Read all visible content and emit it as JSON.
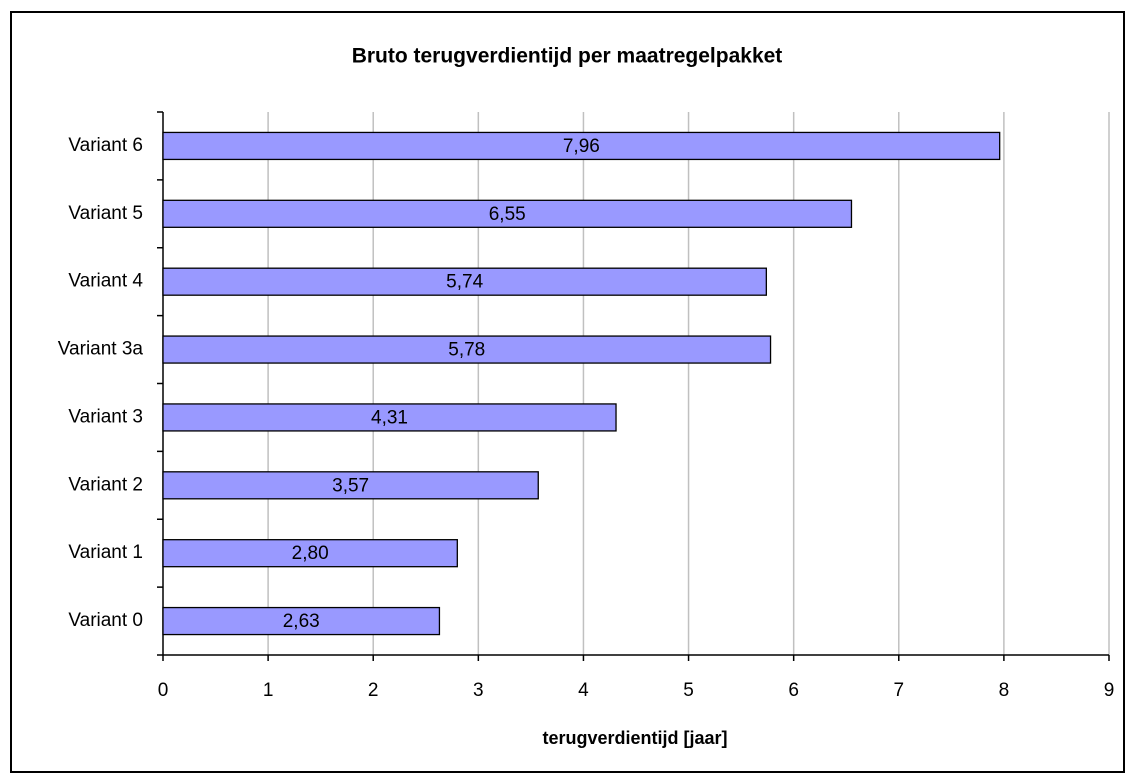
{
  "chart_data": {
    "type": "bar",
    "orientation": "horizontal",
    "title": "Bruto terugverdientijd per maatregelpakket",
    "x_label": "terugverdientijd [jaar]",
    "categories": [
      "Variant 0",
      "Variant 1",
      "Variant 2",
      "Variant 3",
      "Variant 3a",
      "Variant 4",
      "Variant 5",
      "Variant 6"
    ],
    "values": [
      2.63,
      2.8,
      3.57,
      4.31,
      5.78,
      5.74,
      6.55,
      7.96
    ],
    "value_labels": [
      "2,63",
      "2,80",
      "3,57",
      "4,31",
      "5,78",
      "5,74",
      "6,55",
      "7,96"
    ],
    "color": "#9999ff",
    "xlim": [
      0,
      9
    ],
    "xticks": [
      0,
      1,
      2,
      3,
      4,
      5,
      6,
      7,
      8,
      9
    ],
    "grid": true
  }
}
